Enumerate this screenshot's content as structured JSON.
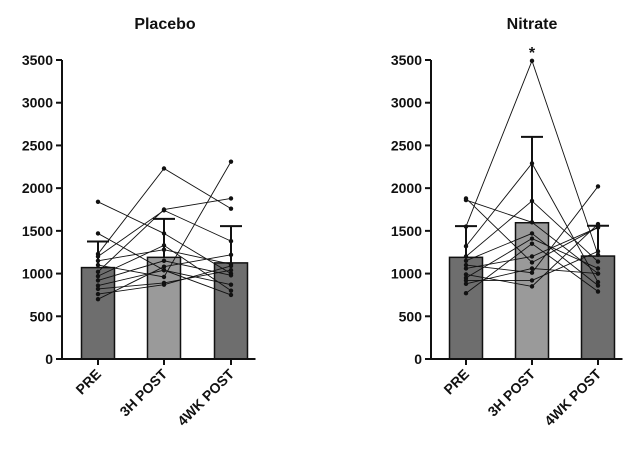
{
  "chart_data": [
    {
      "type": "bar",
      "title": "Placebo",
      "xlabel": "",
      "ylabel": "",
      "ylim": [
        0,
        3500
      ],
      "yticks": [
        0,
        500,
        1000,
        1500,
        2000,
        2500,
        3000,
        3500
      ],
      "categories": [
        "PRE",
        "3H POST",
        "4WK POST"
      ],
      "values": [
        1070,
        1190,
        1125
      ],
      "error_upper": [
        1375,
        1640,
        1555
      ],
      "bar_colors": [
        "#6e6e6e",
        "#9a9a9a",
        "#6e6e6e"
      ],
      "individual_lines": [
        [
          1840,
          1470,
          1000
        ],
        [
          1470,
          1040,
          870
        ],
        [
          1230,
          2230,
          1760
        ],
        [
          1200,
          1740,
          1380
        ],
        [
          1150,
          1280,
          1110
        ],
        [
          1100,
          960,
          2310
        ],
        [
          1020,
          1750,
          1880
        ],
        [
          970,
          1330,
          800
        ],
        [
          920,
          1150,
          980
        ],
        [
          860,
          1040,
          750
        ],
        [
          820,
          890,
          1040
        ],
        [
          760,
          870,
          1090
        ],
        [
          700,
          1080,
          1220
        ]
      ],
      "annotations": []
    },
    {
      "type": "bar",
      "title": "Nitrate",
      "xlabel": "",
      "ylabel": "",
      "ylim": [
        0,
        3500
      ],
      "yticks": [
        0,
        500,
        1000,
        1500,
        2000,
        2500,
        3000,
        3500
      ],
      "categories": [
        "PRE",
        "3H POST",
        "4WK POST"
      ],
      "values": [
        1190,
        1595,
        1205
      ],
      "error_upper": [
        1555,
        2600,
        1560
      ],
      "bar_colors": [
        "#6e6e6e",
        "#9a9a9a",
        "#6e6e6e"
      ],
      "individual_lines": [
        [
          1880,
          1130,
          1540
        ],
        [
          1860,
          1600,
          1000
        ],
        [
          1550,
          3490,
          1220
        ],
        [
          1320,
          2290,
          900
        ],
        [
          1200,
          1850,
          1140
        ],
        [
          1150,
          1470,
          860
        ],
        [
          1100,
          1010,
          2020
        ],
        [
          1060,
          1200,
          1540
        ],
        [
          990,
          850,
          1580
        ],
        [
          950,
          1410,
          1060
        ],
        [
          920,
          920,
          1260
        ],
        [
          880,
          1060,
          1000
        ],
        [
          770,
          1350,
          790
        ]
      ],
      "annotations": [
        {
          "text": "*",
          "category": "3H POST",
          "value": 3490
        }
      ]
    }
  ]
}
